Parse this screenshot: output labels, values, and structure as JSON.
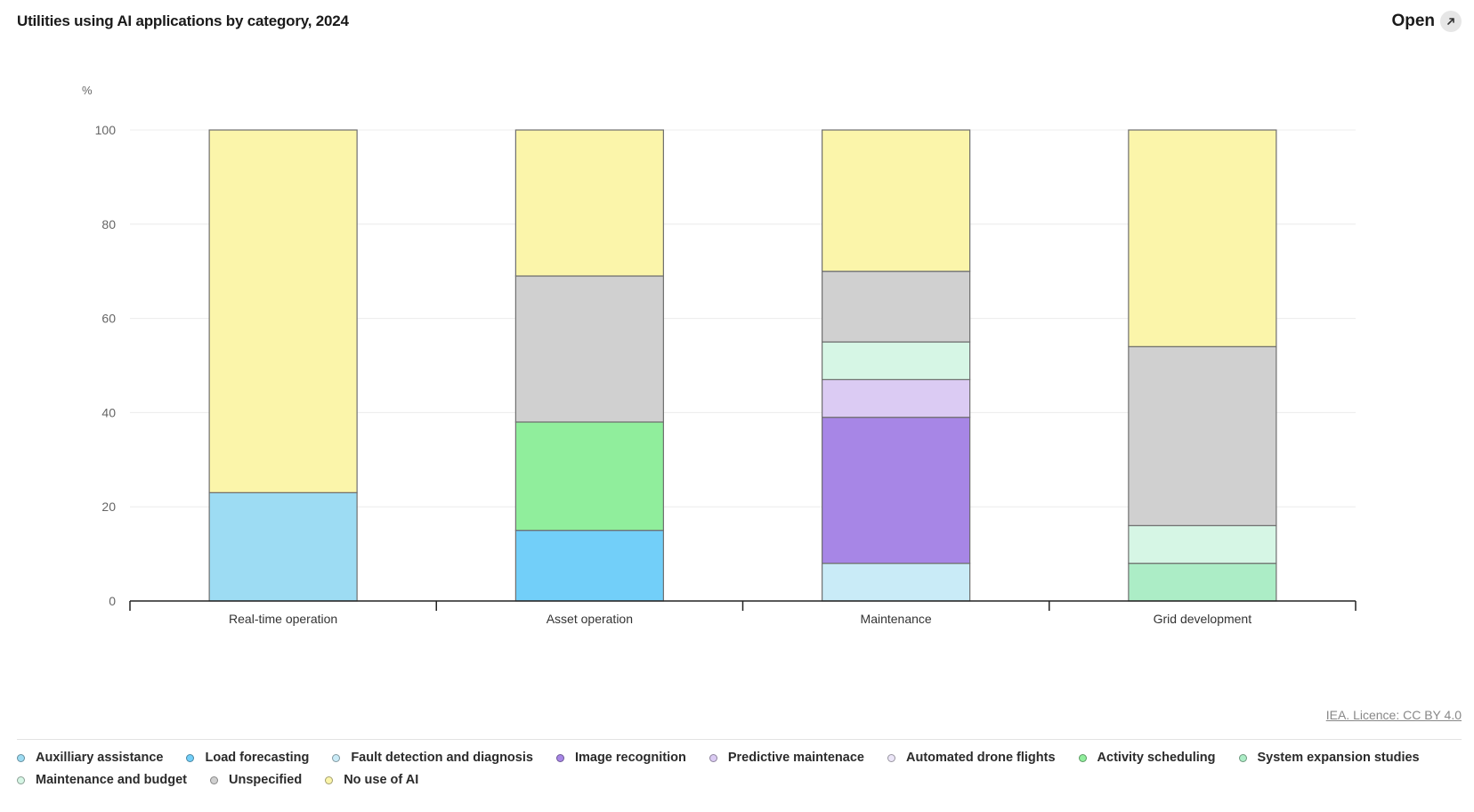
{
  "header": {
    "title": "Utilities using AI applications by category, 2024",
    "open_label": "Open"
  },
  "footer": {
    "licence": "IEA. Licence: CC BY 4.0"
  },
  "chart_data": {
    "type": "bar",
    "stacked": true,
    "title": "Utilities using AI applications by category, 2024",
    "ylabel": "%",
    "xlabel": "",
    "ylim": [
      0,
      100
    ],
    "yticks": [
      0,
      20,
      40,
      60,
      80,
      100
    ],
    "grid": true,
    "legend_position": "bottom",
    "categories": [
      "Real-time operation",
      "Asset operation",
      "Maintenance",
      "Grid development"
    ],
    "series": [
      {
        "name": "Auxilliary assistance",
        "color": "#9DDCF3",
        "values": [
          23,
          0,
          0,
          0
        ]
      },
      {
        "name": "Load forecasting",
        "color": "#72CFF9",
        "values": [
          0,
          15,
          0,
          0
        ]
      },
      {
        "name": "Fault detection and diagnosis",
        "color": "#C9EBF7",
        "values": [
          0,
          0,
          8,
          0
        ]
      },
      {
        "name": "Image recognition",
        "color": "#A786E6",
        "values": [
          0,
          0,
          31,
          0
        ]
      },
      {
        "name": "Predictive maintenace",
        "color": "#DBCBF3",
        "values": [
          0,
          0,
          8,
          0
        ]
      },
      {
        "name": "Automated drone flights",
        "color": "#ECE6F8",
        "values": [
          0,
          0,
          0,
          0
        ]
      },
      {
        "name": "Activity scheduling",
        "color": "#90EE9C",
        "values": [
          0,
          23,
          0,
          0
        ]
      },
      {
        "name": "System expansion studies",
        "color": "#ACEDC6",
        "values": [
          0,
          0,
          0,
          8
        ]
      },
      {
        "name": "Maintenance and budget",
        "color": "#D6F6E5",
        "values": [
          0,
          0,
          8,
          8
        ]
      },
      {
        "name": "Unspecified",
        "color": "#D0D0D0",
        "values": [
          0,
          31,
          15,
          38
        ]
      },
      {
        "name": "No use of AI",
        "color": "#FBF5AA",
        "values": [
          77,
          31,
          30,
          46
        ]
      }
    ]
  }
}
